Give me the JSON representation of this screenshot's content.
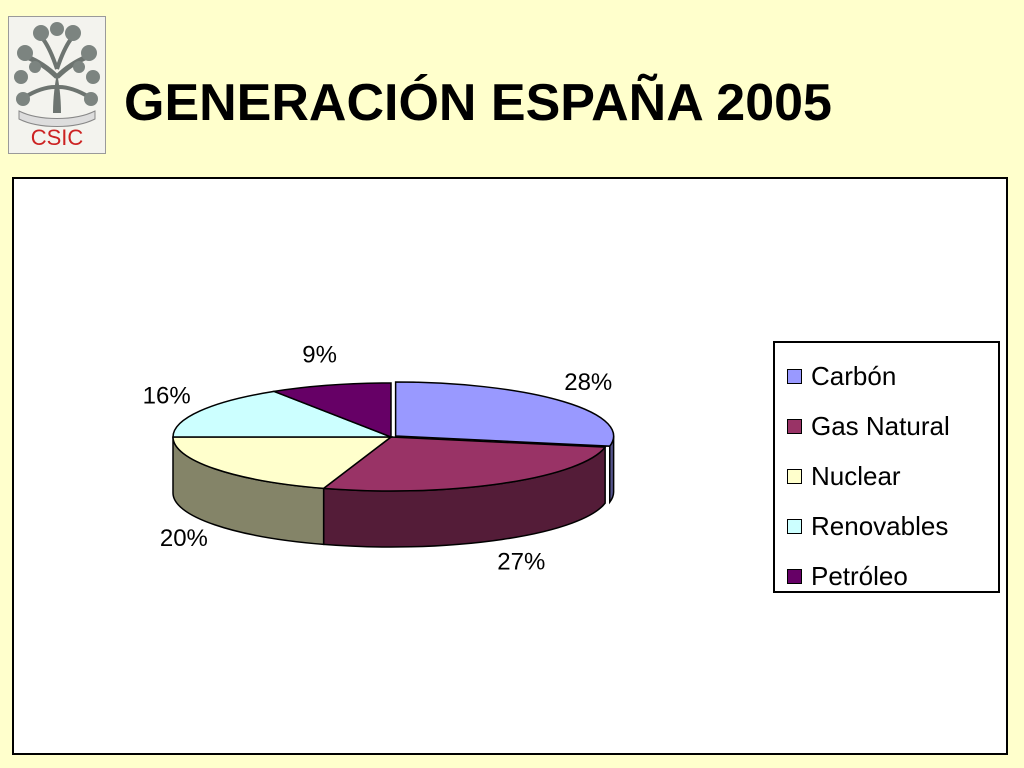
{
  "slide": {
    "title": "GENERACIÓN ESPAÑA 2005",
    "logo_text": "CSIC",
    "background_color": "#FFFFCC"
  },
  "chart_data": {
    "type": "pie",
    "title": "GENERACIÓN ESPAÑA 2005",
    "style": "3d-exploded-pie",
    "legend_position": "right",
    "series": [
      {
        "name": "Carbón",
        "value": 28,
        "label": "28%",
        "color": "#9999FF"
      },
      {
        "name": "Gas Natural",
        "value": 27,
        "label": "27%",
        "color": "#993366"
      },
      {
        "name": "Nuclear",
        "value": 20,
        "label": "20%",
        "color": "#FFFFCC"
      },
      {
        "name": "Renovables",
        "value": 16,
        "label": "16%",
        "color": "#CCFFFF"
      },
      {
        "name": "Petróleo",
        "value": 9,
        "label": "9%",
        "color": "#660066"
      }
    ]
  }
}
